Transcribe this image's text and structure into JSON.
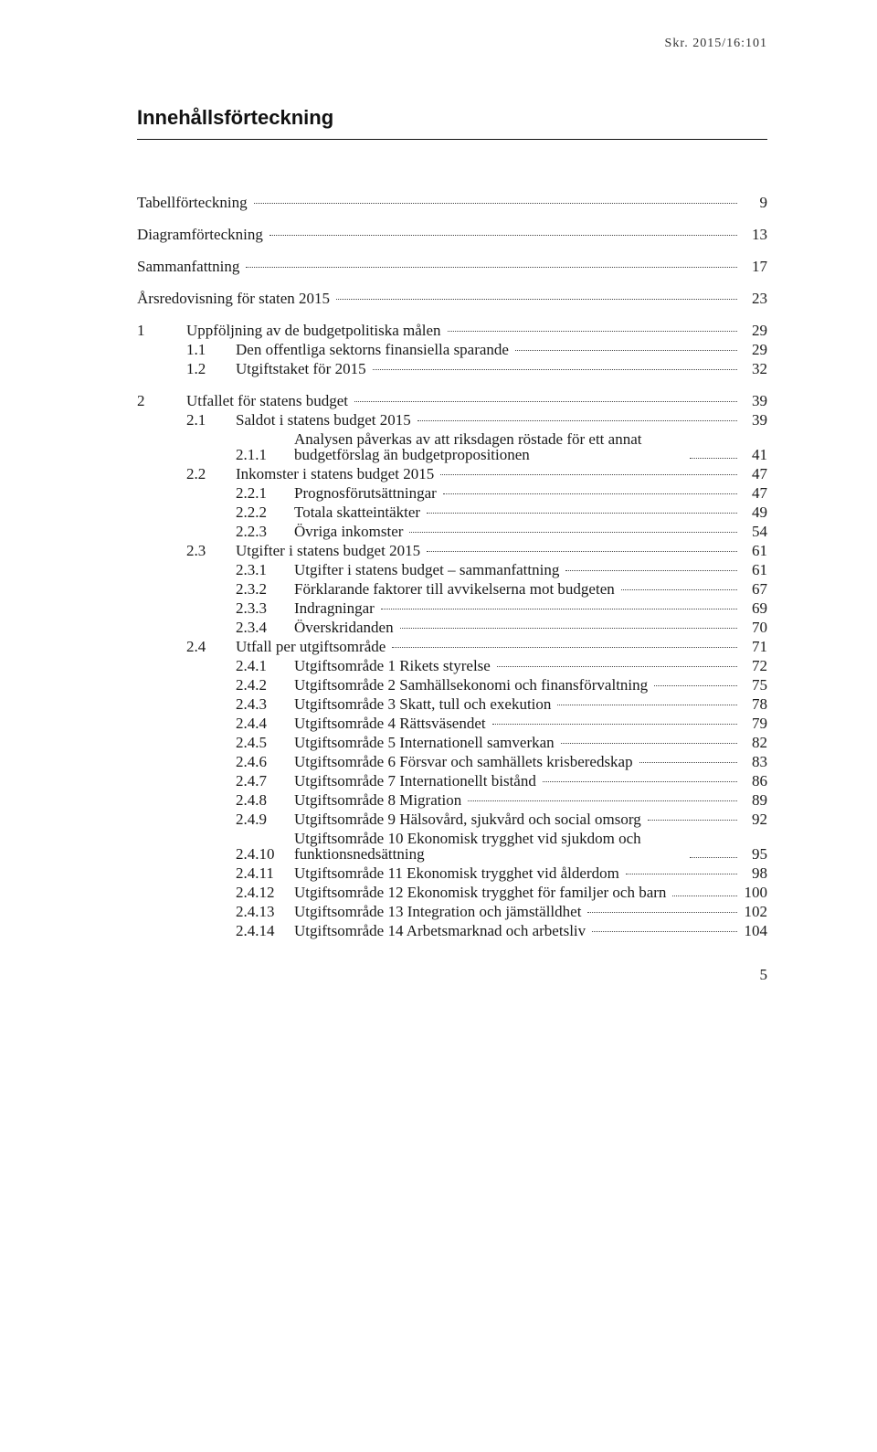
{
  "doc_header": "Skr. 2015/16:101",
  "title": "Innehållsförteckning",
  "page_number": "5",
  "text_color": "#1a1a1a",
  "background_color": "#ffffff",
  "rule_color": "#111111",
  "leader_color": "#444444",
  "body_fontsize_pt": 13,
  "title_fontsize_pt": 17,
  "entries": [
    {
      "level": 0,
      "num": "",
      "label": "Tabellförteckning",
      "page": "9",
      "gap": true
    },
    {
      "level": 0,
      "num": "",
      "label": "Diagramförteckning",
      "page": "13",
      "gap": true
    },
    {
      "level": 0,
      "num": "",
      "label": "Sammanfattning",
      "page": "17",
      "gap": true
    },
    {
      "level": 0,
      "num": "",
      "label": "Årsredovisning för staten 2015",
      "page": "23",
      "gap": true
    },
    {
      "level": 1,
      "num": "1",
      "label": "Uppföljning av de budgetpolitiska målen",
      "page": "29",
      "gap": true
    },
    {
      "level": 2,
      "num": "1.1",
      "label": "Den offentliga sektorns finansiella sparande",
      "page": "29"
    },
    {
      "level": 2,
      "num": "1.2",
      "label": "Utgiftstaket för 2015",
      "page": "32"
    },
    {
      "level": 1,
      "num": "2",
      "label": "Utfallet för statens budget",
      "page": "39",
      "gap": true
    },
    {
      "level": 2,
      "num": "2.1",
      "label": "Saldot i statens budget 2015",
      "page": "39"
    },
    {
      "level": 3,
      "num": "2.1.1",
      "label": "Analysen påverkas av att riksdagen röstade för ett annat budgetförslag än budgetpropositionen",
      "page": "41",
      "multi": true
    },
    {
      "level": 2,
      "num": "2.2",
      "label": "Inkomster i statens budget 2015",
      "page": "47"
    },
    {
      "level": 3,
      "num": "2.2.1",
      "label": "Prognosförutsättningar",
      "page": "47"
    },
    {
      "level": 3,
      "num": "2.2.2",
      "label": "Totala skatteintäkter",
      "page": "49"
    },
    {
      "level": 3,
      "num": "2.2.3",
      "label": "Övriga inkomster",
      "page": "54"
    },
    {
      "level": 2,
      "num": "2.3",
      "label": "Utgifter i statens budget 2015",
      "page": "61"
    },
    {
      "level": 3,
      "num": "2.3.1",
      "label": "Utgifter i statens budget – sammanfattning",
      "page": "61"
    },
    {
      "level": 3,
      "num": "2.3.2",
      "label": "Förklarande faktorer till avvikelserna mot budgeten",
      "page": "67"
    },
    {
      "level": 3,
      "num": "2.3.3",
      "label": "Indragningar",
      "page": "69"
    },
    {
      "level": 3,
      "num": "2.3.4",
      "label": "Överskridanden",
      "page": "70"
    },
    {
      "level": 2,
      "num": "2.4",
      "label": "Utfall per utgiftsområde",
      "page": "71"
    },
    {
      "level": 3,
      "num": "2.4.1",
      "label": "Utgiftsområde 1 Rikets styrelse",
      "page": "72"
    },
    {
      "level": 3,
      "num": "2.4.2",
      "label": "Utgiftsområde 2 Samhällsekonomi och finansförvaltning",
      "page": "75"
    },
    {
      "level": 3,
      "num": "2.4.3",
      "label": "Utgiftsområde 3 Skatt, tull och exekution",
      "page": "78"
    },
    {
      "level": 3,
      "num": "2.4.4",
      "label": "Utgiftsområde 4 Rättsväsendet",
      "page": "79"
    },
    {
      "level": 3,
      "num": "2.4.5",
      "label": "Utgiftsområde 5 Internationell samverkan",
      "page": "82"
    },
    {
      "level": 3,
      "num": "2.4.6",
      "label": "Utgiftsområde 6 Försvar och samhällets krisberedskap",
      "page": "83"
    },
    {
      "level": 3,
      "num": "2.4.7",
      "label": "Utgiftsområde 7 Internationellt bistånd",
      "page": "86"
    },
    {
      "level": 3,
      "num": "2.4.8",
      "label": "Utgiftsområde 8 Migration",
      "page": "89"
    },
    {
      "level": 3,
      "num": "2.4.9",
      "label": "Utgiftsområde 9 Hälsovård, sjukvård och social omsorg",
      "page": "92"
    },
    {
      "level": 3,
      "num": "2.4.10",
      "label": "Utgiftsområde 10 Ekonomisk trygghet vid sjukdom och funktionsnedsättning",
      "page": "95",
      "multi": true
    },
    {
      "level": 3,
      "num": "2.4.11",
      "label": "Utgiftsområde 11 Ekonomisk trygghet vid ålderdom",
      "page": "98"
    },
    {
      "level": 3,
      "num": "2.4.12",
      "label": "Utgiftsområde 12 Ekonomisk trygghet för familjer och barn",
      "page": "100",
      "multi": true
    },
    {
      "level": 3,
      "num": "2.4.13",
      "label": "Utgiftsområde 13 Integration och jämställdhet",
      "page": "102"
    },
    {
      "level": 3,
      "num": "2.4.14",
      "label": "Utgiftsområde 14 Arbetsmarknad och arbetsliv",
      "page": "104"
    }
  ]
}
